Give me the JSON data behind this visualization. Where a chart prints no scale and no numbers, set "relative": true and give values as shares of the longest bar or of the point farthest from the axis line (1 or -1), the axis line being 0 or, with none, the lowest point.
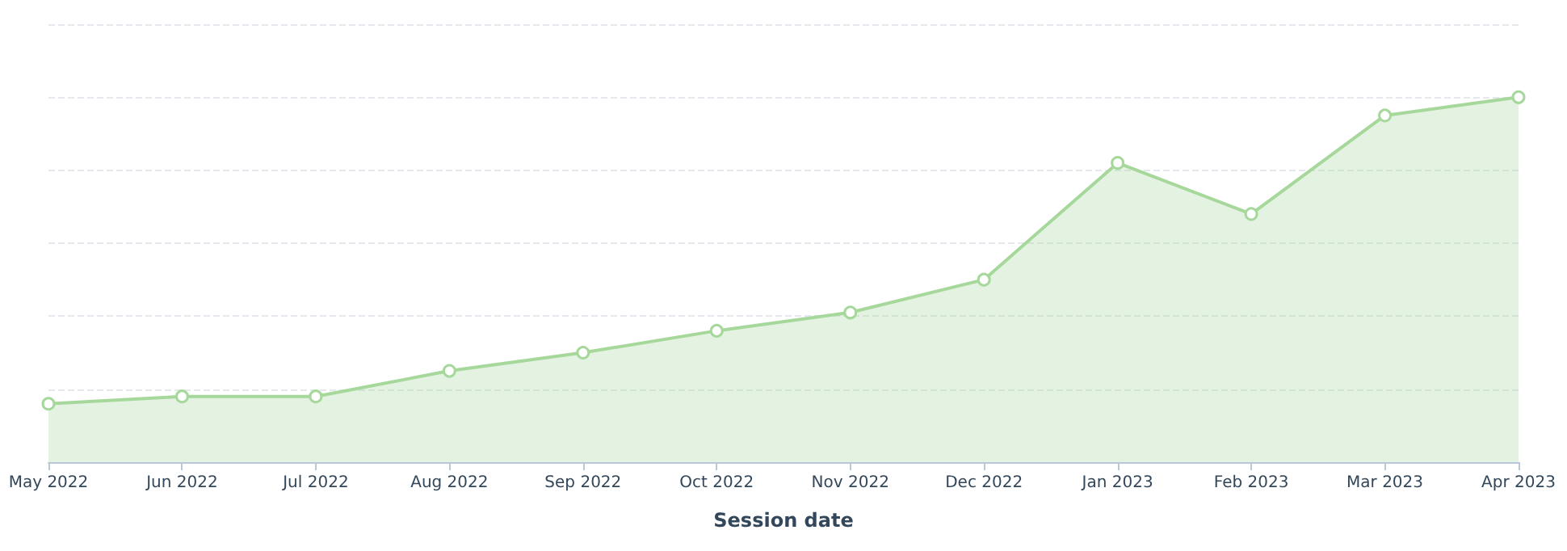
{
  "chart_data": {
    "type": "area",
    "relative": true,
    "xlabel": "Session date",
    "categories": [
      "May 2022",
      "Jun 2022",
      "Jul 2022",
      "Aug 2022",
      "Sep 2022",
      "Oct 2022",
      "Nov 2022",
      "Dec 2022",
      "Jan 2023",
      "Feb 2023",
      "Mar 2023",
      "Apr 2023"
    ],
    "series": [
      {
        "color": "#a6d89c",
        "values": [
          0.16,
          0.18,
          0.18,
          0.25,
          0.3,
          0.36,
          0.41,
          0.5,
          0.82,
          0.68,
          0.95,
          1
        ]
      }
    ],
    "grid": "y",
    "marker": "circle"
  }
}
